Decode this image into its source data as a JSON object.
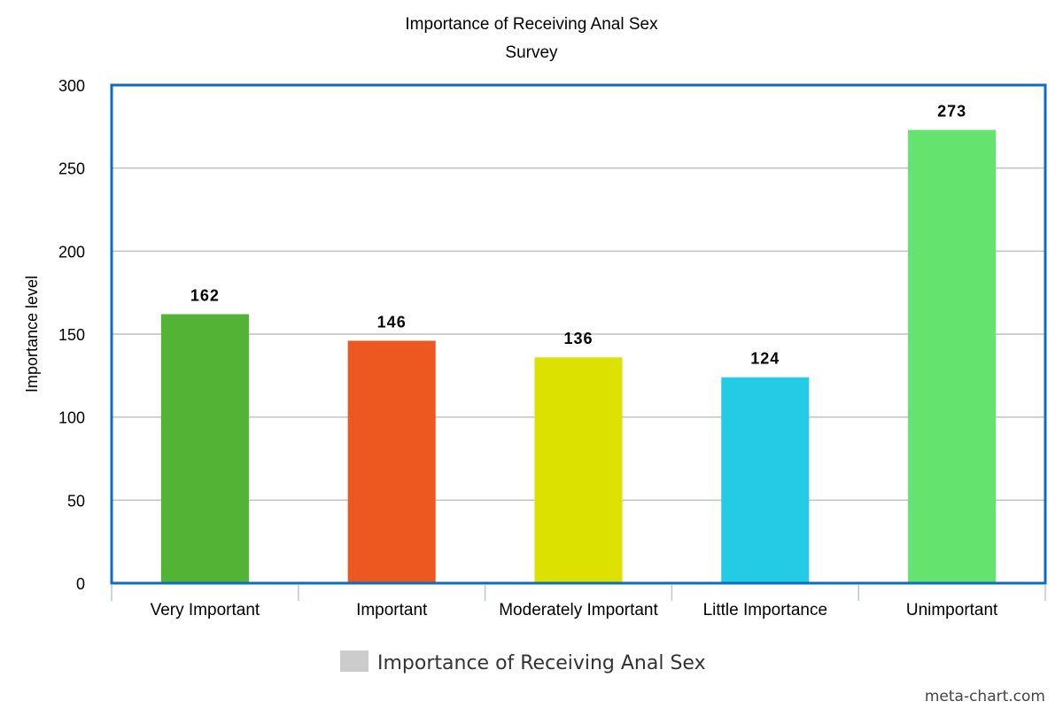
{
  "chart_data": {
    "type": "bar",
    "title": "Importance of Receiving Anal Sex",
    "subtitle": "Survey",
    "xlabel": "",
    "ylabel": "Importance level",
    "categories": [
      "Very Important",
      "Important",
      "Moderately Important",
      "Little Importance",
      "Unimportant"
    ],
    "values": [
      162,
      146,
      136,
      124,
      273
    ],
    "value_labels": [
      "162",
      "146",
      "136",
      "124",
      "273"
    ],
    "bar_colors": [
      "#52b334",
      "#ec581f",
      "#dde100",
      "#25cae4",
      "#64e46f"
    ],
    "ylim": [
      0,
      300
    ],
    "yticks": [
      0,
      50,
      100,
      150,
      200,
      250,
      300
    ],
    "ytick_labels": [
      "0",
      "50",
      "100",
      "150",
      "200",
      "250",
      "300"
    ],
    "grid": true,
    "legend": {
      "position": "bottom-center",
      "entries": [
        {
          "label": "Importance of Receiving Anal Sex",
          "color": "#cccccc"
        }
      ]
    },
    "frame_color": "#0d6ebd",
    "grid_color": "#c0c0c0"
  },
  "footer": {
    "credit": "meta-chart.com"
  }
}
